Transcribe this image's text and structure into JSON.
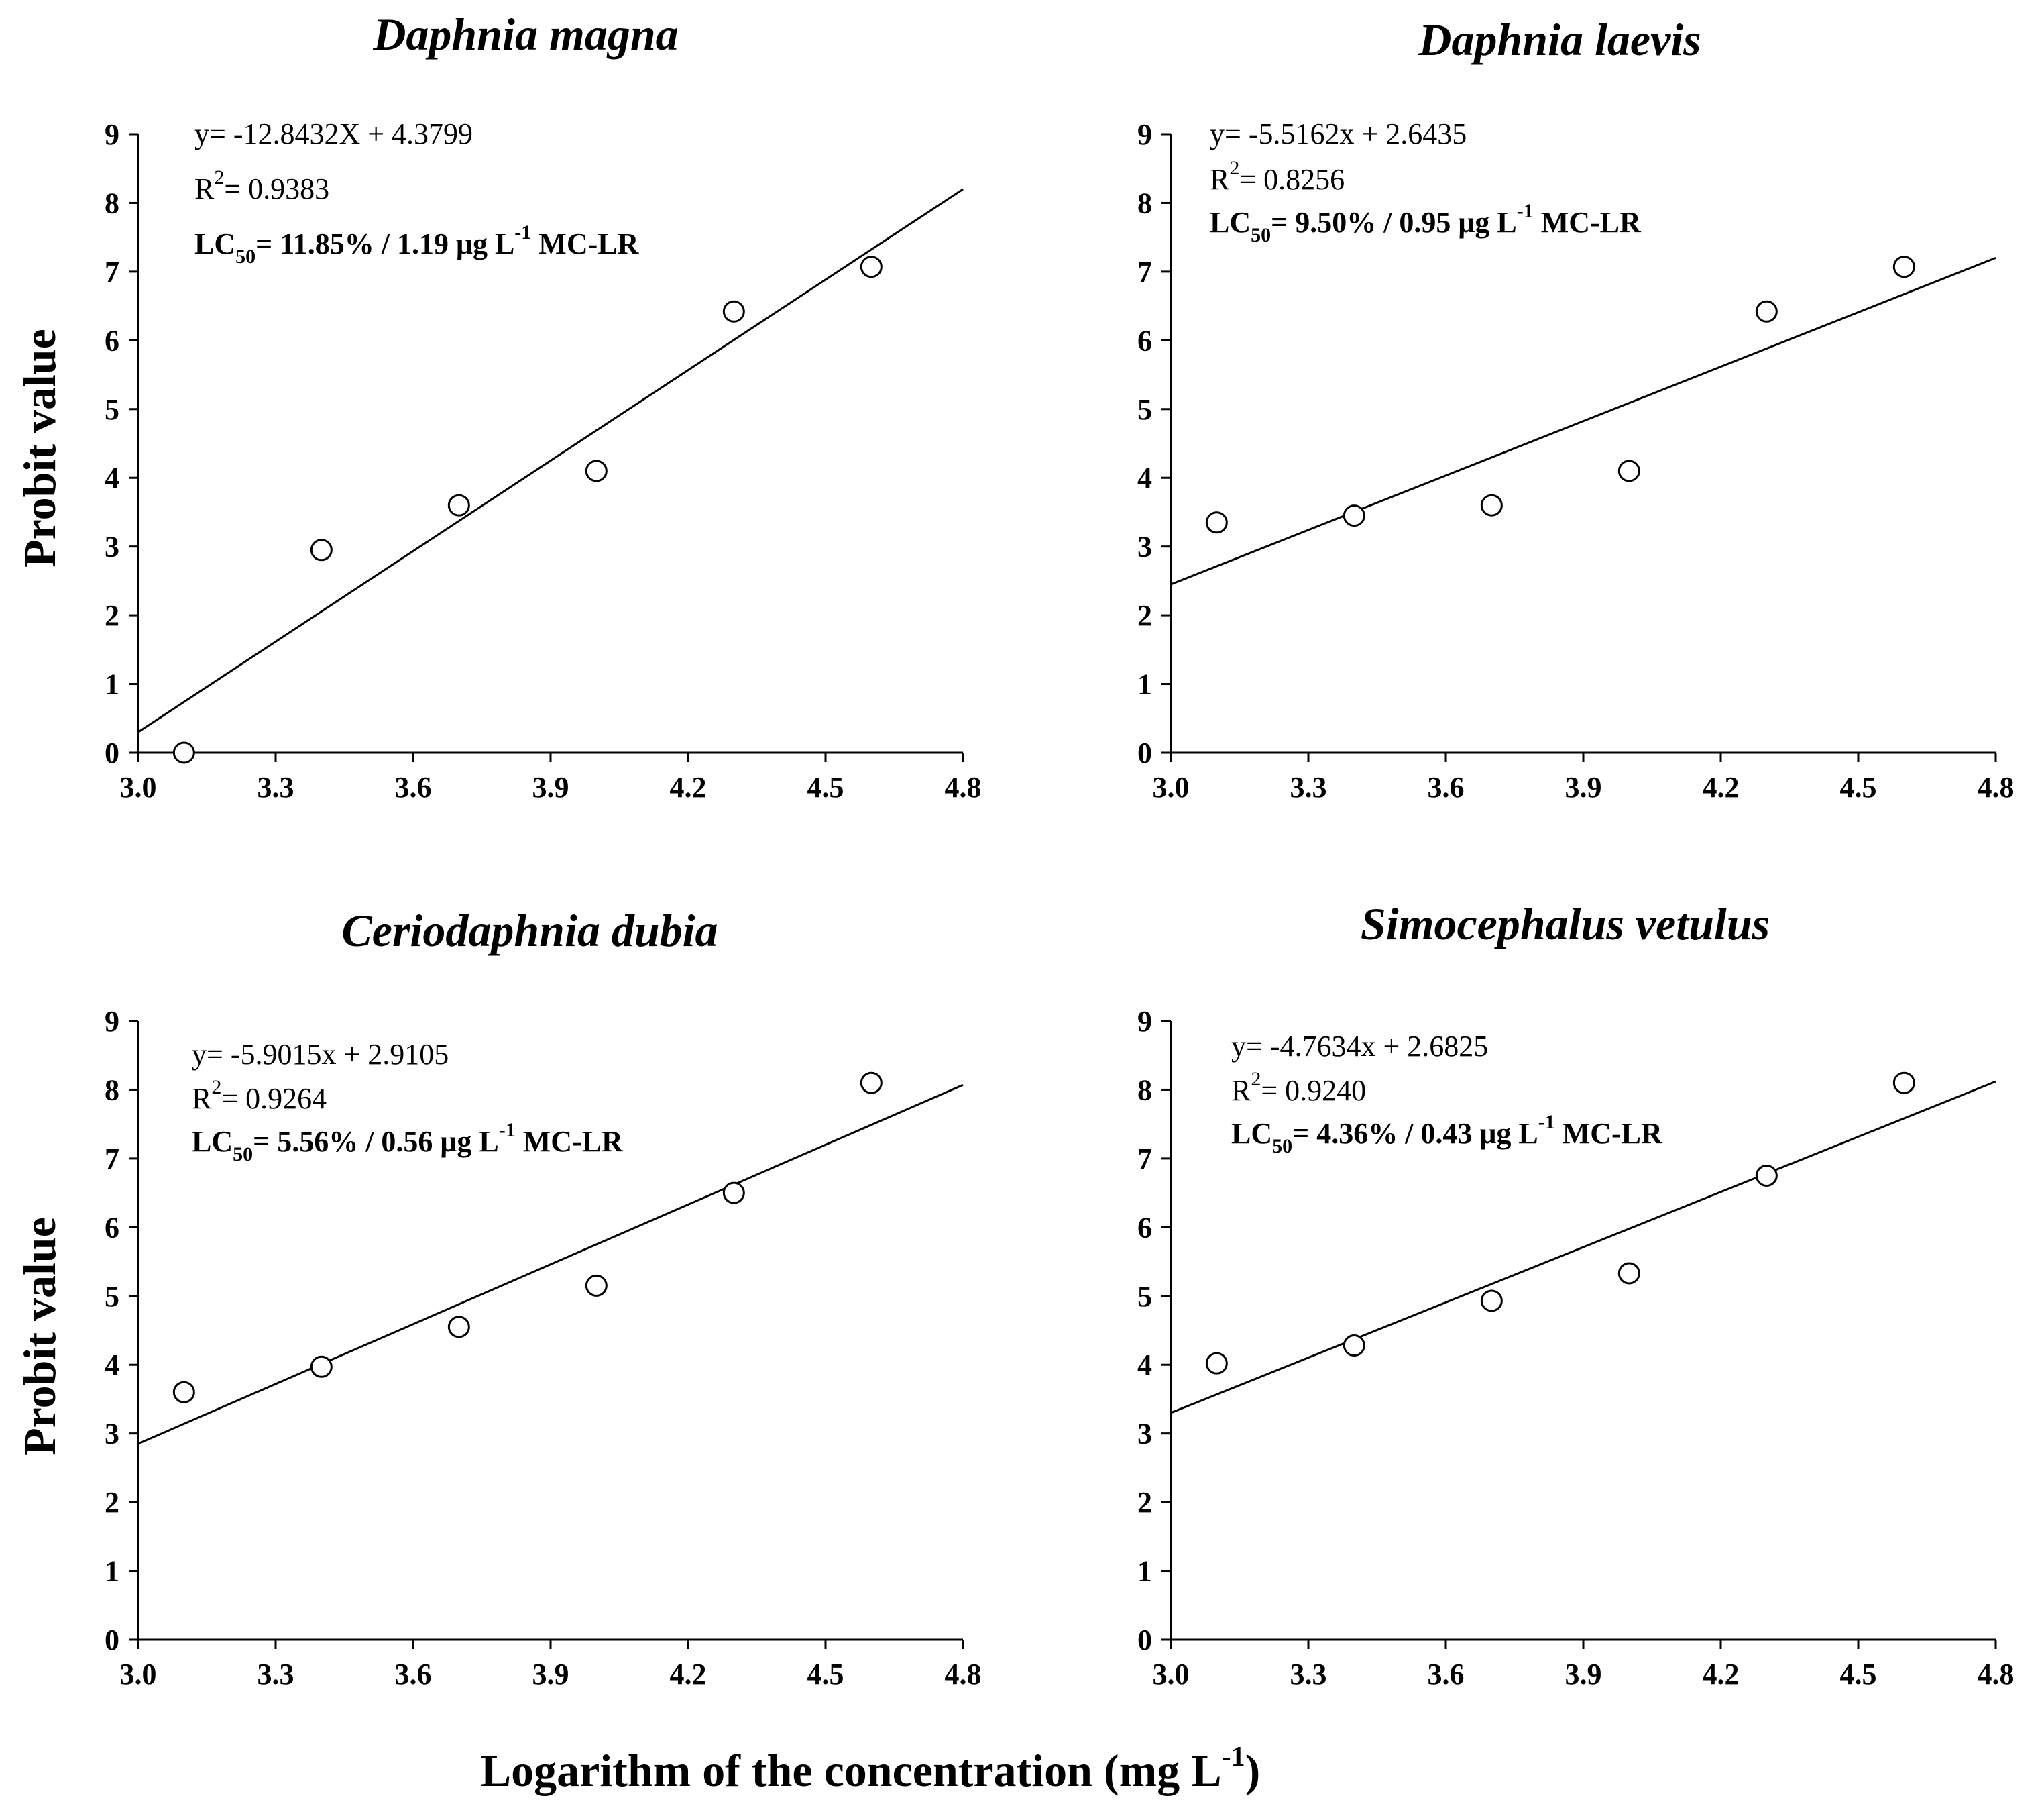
{
  "figure": {
    "ylabel": "Probit value",
    "xlabel_main": "Logarithm of the concentration (mg L",
    "xlabel_sup": "-1",
    "xlabel_close": ")"
  },
  "chart_data": [
    {
      "type": "scatter",
      "title": "Daphnia magna",
      "xlim": [
        3.0,
        4.8
      ],
      "ylim": [
        0,
        9
      ],
      "x_ticks": [
        "3.0",
        "3.3",
        "3.6",
        "3.9",
        "4.2",
        "4.5",
        "4.8"
      ],
      "y_ticks": [
        "0",
        "1",
        "2",
        "3",
        "4",
        "5",
        "6",
        "7",
        "8",
        "9"
      ],
      "x": [
        3.1,
        3.4,
        3.7,
        4.0,
        4.3,
        4.6
      ],
      "y": [
        0.0,
        2.95,
        3.6,
        4.1,
        6.42,
        7.07
      ],
      "trendline": {
        "x": [
          3.0,
          4.8
        ],
        "y": [
          0.3,
          8.2
        ]
      },
      "annotation": {
        "equation": "y= -12.8432X + 4.3799",
        "r2_label": "R",
        "r2_sup": "2",
        "r2_value": "= 0.9383",
        "lc_label": "LC",
        "lc_sub": "50",
        "lc_value": "= 11.85% / 1.19 μg L",
        "lc_sup": "-1",
        "lc_tail": " MC-LR"
      }
    },
    {
      "type": "scatter",
      "title": "Daphnia laevis",
      "xlim": [
        3.0,
        4.8
      ],
      "ylim": [
        0,
        9
      ],
      "x_ticks": [
        "3.0",
        "3.3",
        "3.6",
        "3.9",
        "4.2",
        "4.5",
        "4.8"
      ],
      "y_ticks": [
        "0",
        "1",
        "2",
        "3",
        "4",
        "5",
        "6",
        "7",
        "8",
        "9"
      ],
      "x": [
        3.1,
        3.4,
        3.7,
        4.0,
        4.3,
        4.6
      ],
      "y": [
        3.35,
        3.45,
        3.6,
        4.1,
        6.42,
        7.07
      ],
      "trendline": {
        "x": [
          3.0,
          4.8
        ],
        "y": [
          2.45,
          7.2
        ]
      },
      "annotation": {
        "equation": "y= -5.5162x + 2.6435",
        "r2_label": "R",
        "r2_sup": "2",
        "r2_value": "= 0.8256",
        "lc_label": "LC",
        "lc_sub": "50",
        "lc_value": "= 9.50% / 0.95 μg L",
        "lc_sup": "-1",
        "lc_tail": " MC-LR"
      }
    },
    {
      "type": "scatter",
      "title": "Ceriodaphnia dubia",
      "xlim": [
        3.0,
        4.8
      ],
      "ylim": [
        0,
        9
      ],
      "x_ticks": [
        "3.0",
        "3.3",
        "3.6",
        "3.9",
        "4.2",
        "4.5",
        "4.8"
      ],
      "y_ticks": [
        "0",
        "1",
        "2",
        "3",
        "4",
        "5",
        "6",
        "7",
        "8",
        "9"
      ],
      "x": [
        3.1,
        3.4,
        3.7,
        4.0,
        4.3,
        4.6
      ],
      "y": [
        3.6,
        3.97,
        4.55,
        5.15,
        6.5,
        8.1
      ],
      "trendline": {
        "x": [
          3.0,
          4.8
        ],
        "y": [
          2.85,
          8.07
        ]
      },
      "annotation": {
        "equation": "y= -5.9015x + 2.9105",
        "r2_label": "R",
        "r2_sup": "2",
        "r2_value": "= 0.9264",
        "lc_label": "LC",
        "lc_sub": "50",
        "lc_value": "= 5.56% / 0.56 μg L",
        "lc_sup": "-1",
        "lc_tail": " MC-LR"
      }
    },
    {
      "type": "scatter",
      "title": "Simocephalus vetulus",
      "xlim": [
        3.0,
        4.8
      ],
      "ylim": [
        0,
        9
      ],
      "x_ticks": [
        "3.0",
        "3.3",
        "3.6",
        "3.9",
        "4.2",
        "4.5",
        "4.8"
      ],
      "y_ticks": [
        "0",
        "1",
        "2",
        "3",
        "4",
        "5",
        "6",
        "7",
        "8",
        "9"
      ],
      "x": [
        3.1,
        3.4,
        3.7,
        4.0,
        4.3,
        4.6
      ],
      "y": [
        4.02,
        4.28,
        4.93,
        5.33,
        6.75,
        8.1
      ],
      "trendline": {
        "x": [
          3.0,
          4.8
        ],
        "y": [
          3.3,
          8.12
        ]
      },
      "annotation": {
        "equation": "y= -4.7634x + 2.6825",
        "r2_label": "R",
        "r2_sup": "2",
        "r2_value": "= 0.9240",
        "lc_label": "LC",
        "lc_sub": "50",
        "lc_value": "= 4.36% / 0.43 μg L",
        "lc_sup": "-1",
        "lc_tail": " MC-LR"
      }
    }
  ]
}
